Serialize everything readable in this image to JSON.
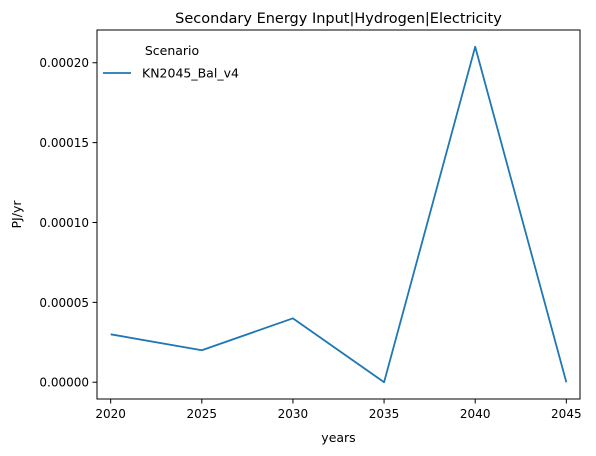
{
  "chart_data": {
    "type": "line",
    "title": "Secondary Energy Input|Hydrogen|Electricity",
    "xlabel": "years",
    "ylabel": "PJ/yr",
    "x": [
      2020,
      2025,
      2030,
      2035,
      2040,
      2045
    ],
    "xticks": [
      "2020",
      "2025",
      "2030",
      "2035",
      "2040",
      "2045"
    ],
    "yticks": [
      "0.00000",
      "0.00005",
      "0.00010",
      "0.00015",
      "0.00020"
    ],
    "ytick_values": [
      0,
      5e-05,
      0.0001,
      0.00015,
      0.0002
    ],
    "xlim": [
      2019.25,
      2045.75
    ],
    "ylim": [
      -1.05e-05,
      0.0002205
    ],
    "grid": false,
    "legend": {
      "title": "Scenario",
      "placement": "top-left"
    },
    "series": [
      {
        "name": "KN2045_Bal_v4",
        "color": "#1f77b4",
        "values": [
          3e-05,
          2e-05,
          4e-05,
          0.0,
          0.00021,
          0.0
        ]
      }
    ]
  }
}
